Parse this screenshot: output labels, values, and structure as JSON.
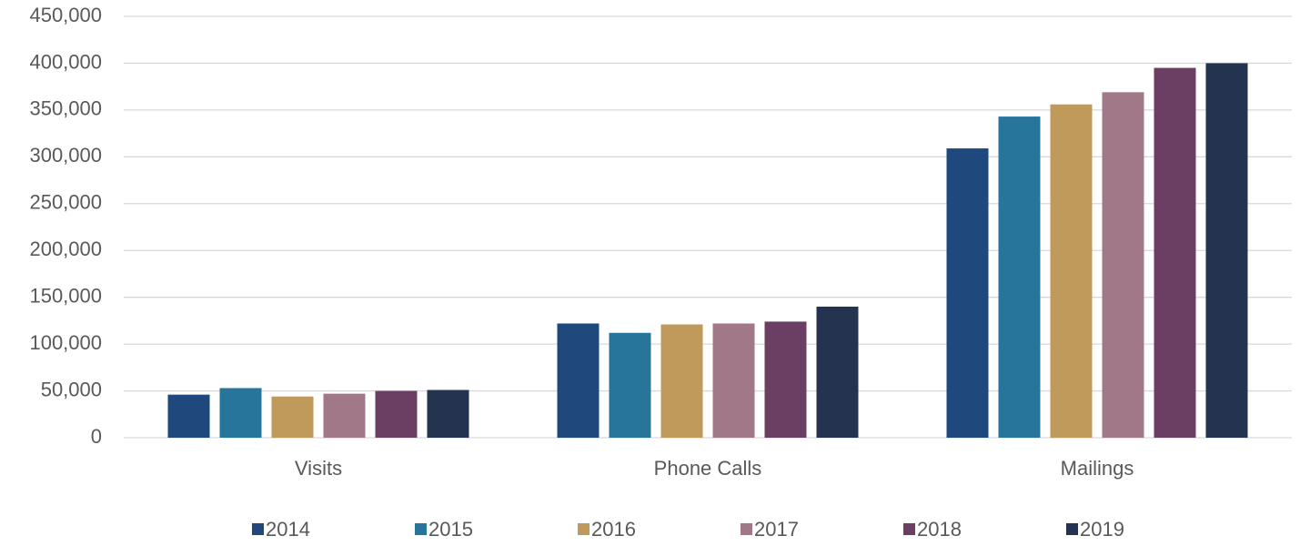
{
  "chart_data": {
    "type": "bar",
    "categories": [
      "Visits",
      "Phone Calls",
      "Mailings"
    ],
    "series": [
      {
        "name": "2014",
        "color": "#1f497d",
        "values": [
          46000,
          122000,
          309000
        ]
      },
      {
        "name": "2015",
        "color": "#27759b",
        "values": [
          53000,
          112000,
          343000
        ]
      },
      {
        "name": "2016",
        "color": "#c09a5b",
        "values": [
          44000,
          121000,
          356000
        ]
      },
      {
        "name": "2017",
        "color": "#a07888",
        "values": [
          47000,
          122000,
          369000
        ]
      },
      {
        "name": "2018",
        "color": "#6b3f63",
        "values": [
          50000,
          124000,
          395000
        ]
      },
      {
        "name": "2019",
        "color": "#243350",
        "values": [
          51000,
          140000,
          400000
        ]
      }
    ],
    "ylim": [
      0,
      450000
    ],
    "yticks": [
      0,
      {
        "value": 50000,
        "label": "50,000"
      },
      {
        "value": 100000,
        "label": "100,000"
      },
      {
        "value": 150000,
        "label": "150,000"
      },
      {
        "value": 200000,
        "label": "200,000"
      },
      {
        "value": 250000,
        "label": "250,000"
      },
      {
        "value": 300000,
        "label": "300,000"
      },
      {
        "value": 350000,
        "label": "350,000"
      },
      {
        "value": 400000,
        "label": "400,000"
      },
      {
        "value": 450000,
        "label": "450,000"
      }
    ],
    "grid": true,
    "legend": "bottom"
  }
}
